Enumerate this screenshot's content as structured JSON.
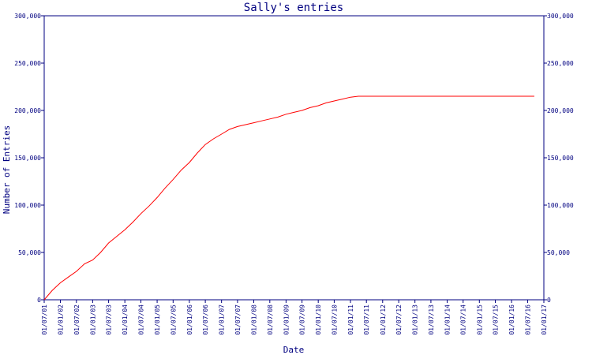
{
  "chart_data": {
    "type": "line",
    "title": "Sally's entries",
    "xlabel": "Date",
    "ylabel": "Number of Entries",
    "x_tick_labels": [
      "01/07/01",
      "01/01/02",
      "01/07/02",
      "01/01/03",
      "01/07/03",
      "01/01/04",
      "01/07/04",
      "01/01/05",
      "01/07/05",
      "01/01/06",
      "01/07/06",
      "01/01/07",
      "01/07/07",
      "01/01/08",
      "01/07/08",
      "01/01/09",
      "01/07/09",
      "01/01/10",
      "01/07/10",
      "01/01/11",
      "01/07/11",
      "01/01/12",
      "01/07/12",
      "01/01/13",
      "01/07/13",
      "01/01/14",
      "01/07/14",
      "01/01/15",
      "01/07/15",
      "01/01/16",
      "01/07/16",
      "01/01/17"
    ],
    "y_ticks": [
      0,
      50000,
      100000,
      150000,
      200000,
      250000,
      300000
    ],
    "y_tick_labels": [
      "0",
      "50,000",
      "100,000",
      "150,000",
      "200,000",
      "250,000",
      "300,000"
    ],
    "ylim": [
      0,
      300000
    ],
    "xlim": [
      "01/07/01",
      "01/01/17"
    ],
    "grid": false,
    "right_axis": true,
    "series": [
      {
        "color": "#ff0000",
        "x": [
          "01/07/01",
          "01/10/01",
          "01/01/02",
          "01/04/02",
          "01/07/02",
          "01/10/02",
          "01/01/03",
          "01/04/03",
          "01/07/03",
          "01/10/03",
          "01/01/04",
          "01/04/04",
          "01/07/04",
          "01/10/04",
          "01/01/05",
          "01/04/05",
          "01/07/05",
          "01/10/05",
          "01/01/06",
          "01/04/06",
          "01/07/06",
          "01/10/06",
          "01/01/07",
          "01/04/07",
          "01/07/07",
          "01/10/07",
          "01/01/08",
          "01/04/08",
          "01/07/08",
          "01/10/08",
          "01/01/09",
          "01/04/09",
          "01/07/09",
          "01/10/09",
          "01/01/10",
          "01/04/10",
          "01/07/10",
          "01/10/10",
          "01/01/11",
          "01/04/11",
          "01/07/11",
          "01/01/12",
          "01/01/13",
          "01/01/14",
          "01/01/15",
          "01/01/16",
          "01/07/16",
          "15/09/16"
        ],
        "y": [
          0,
          10000,
          18000,
          24000,
          30000,
          38000,
          42000,
          50000,
          60000,
          67000,
          74000,
          82000,
          91000,
          99000,
          108000,
          118000,
          127000,
          137000,
          145000,
          155000,
          164000,
          170000,
          175000,
          180000,
          183000,
          185000,
          187000,
          189000,
          191000,
          193000,
          196000,
          198000,
          200000,
          203000,
          205000,
          208000,
          210000,
          212000,
          214000,
          215000,
          215000,
          215000,
          215000,
          215000,
          215000,
          215000,
          215000,
          215000
        ]
      }
    ]
  }
}
